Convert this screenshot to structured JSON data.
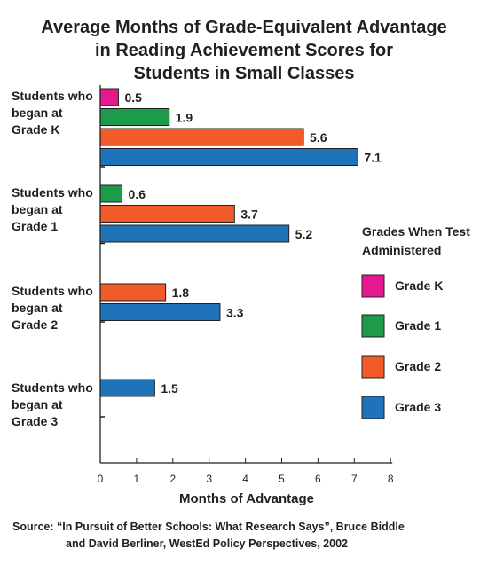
{
  "title": [
    "Average Months of Grade-Equivalent Advantage",
    "in Reading Achievement Scores for",
    "Students in Small Classes"
  ],
  "source": [
    "Source: “In Pursuit of Better Schools: What Research Says”, Bruce Biddle",
    "and David Berliner, WestEd Policy Perspectives, 2002"
  ],
  "colors": {
    "Grade K": "#e5188f",
    "Grade 1": "#1d9a4a",
    "Grade 2": "#f15a29",
    "Grade 3": "#1f73b8"
  },
  "chart_data": {
    "type": "bar",
    "orientation": "horizontal",
    "title": "Average Months of Grade-Equivalent Advantage in Reading Achievement Scores for Students in Small Classes",
    "xlabel": "Months of Advantage",
    "ylabel": "",
    "xlim": [
      0,
      8
    ],
    "xticks": [
      0,
      1,
      2,
      3,
      4,
      5,
      6,
      7,
      8
    ],
    "grid": false,
    "legend": {
      "title": [
        "Grades When Test",
        "Administered"
      ],
      "placement": "right"
    },
    "groups": [
      {
        "label": [
          "Students who",
          "began at",
          "Grade K"
        ],
        "bars": [
          {
            "series": "Grade K",
            "value": 0.5,
            "label": "0.5"
          },
          {
            "series": "Grade 1",
            "value": 1.9,
            "label": "1.9"
          },
          {
            "series": "Grade 2",
            "value": 5.6,
            "label": "5.6"
          },
          {
            "series": "Grade 3",
            "value": 7.1,
            "label": "7.1"
          }
        ]
      },
      {
        "label": [
          "Students who",
          "began at",
          "Grade 1"
        ],
        "bars": [
          {
            "series": "Grade 1",
            "value": 0.6,
            "label": "0.6"
          },
          {
            "series": "Grade 2",
            "value": 3.7,
            "label": "3.7"
          },
          {
            "series": "Grade 3",
            "value": 5.2,
            "label": "5.2"
          }
        ]
      },
      {
        "label": [
          "Students who",
          "began at",
          "Grade 2"
        ],
        "bars": [
          {
            "series": "Grade 2",
            "value": 1.8,
            "label": "1.8"
          },
          {
            "series": "Grade 3",
            "value": 3.3,
            "label": "3.3"
          }
        ]
      },
      {
        "label": [
          "Students who",
          "began at",
          "Grade 3"
        ],
        "bars": [
          {
            "series": "Grade 3",
            "value": 1.5,
            "label": "1.5"
          }
        ]
      }
    ],
    "series": [
      {
        "name": "Grade K"
      },
      {
        "name": "Grade 1"
      },
      {
        "name": "Grade 2"
      },
      {
        "name": "Grade 3"
      }
    ]
  }
}
